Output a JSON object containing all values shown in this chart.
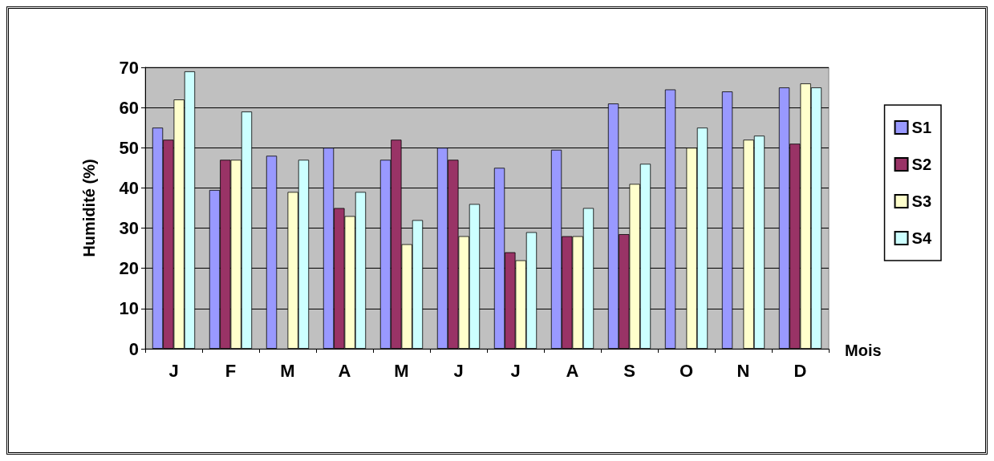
{
  "chart_data": {
    "type": "bar",
    "ylabel": "Humidité (%)",
    "xlabel": "Mois",
    "categories": [
      "J",
      "F",
      "M",
      "A",
      "M",
      "J",
      "J",
      "A",
      "S",
      "O",
      "N",
      "D"
    ],
    "series": [
      {
        "name": "S1",
        "color": "#9999ff",
        "values": [
          55,
          39.5,
          48,
          50,
          47,
          50,
          45,
          49.5,
          61,
          64.5,
          64,
          65
        ]
      },
      {
        "name": "S2",
        "color": "#993366",
        "values": [
          52,
          47,
          null,
          35,
          52,
          47,
          24,
          28,
          28.5,
          null,
          null,
          51
        ]
      },
      {
        "name": "S3",
        "color": "#ffffcc",
        "values": [
          62,
          47,
          39,
          33,
          26,
          28,
          22,
          28,
          41,
          50,
          52,
          66
        ]
      },
      {
        "name": "S4",
        "color": "#ccffff",
        "values": [
          69,
          59,
          47,
          39,
          32,
          36,
          29,
          35,
          46,
          55,
          53,
          65
        ]
      }
    ],
    "ylim": [
      0,
      70
    ],
    "yticks": [
      0,
      10,
      20,
      30,
      40,
      50,
      60,
      70
    ],
    "grid": "y",
    "legend": "right"
  }
}
